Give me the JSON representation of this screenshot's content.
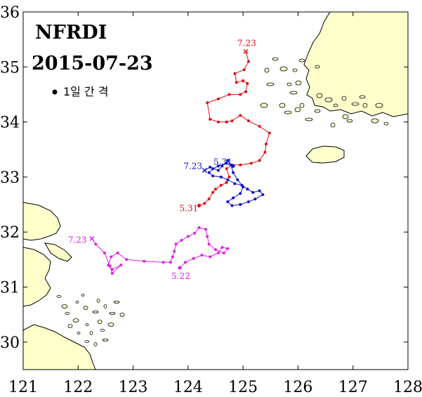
{
  "title": "NFRDI",
  "subtitle": "2015-07-23",
  "legend": {
    "label": "1일 간 격",
    "marker": "filled-dot"
  },
  "axes": {
    "x_ticks": [
      "121",
      "122",
      "123",
      "124",
      "125",
      "126",
      "127",
      "128"
    ],
    "y_ticks": [
      "30",
      "31",
      "32",
      "33",
      "34",
      "35",
      "36"
    ],
    "xlim": [
      121,
      128
    ],
    "ylim": [
      29.5,
      36
    ]
  },
  "colors": {
    "land": "#ffffcc",
    "red": "#dd1111",
    "blue": "#1111cc",
    "magenta": "#dd22dd"
  },
  "chart_data": {
    "type": "scatter",
    "series": [
      {
        "color": "#dd1111",
        "start_label": "5.31",
        "end_label": "7.23",
        "points": [
          [
            124.2,
            32.48
          ],
          [
            124.3,
            32.52
          ],
          [
            124.38,
            32.6
          ],
          [
            124.45,
            32.72
          ],
          [
            124.5,
            32.78
          ],
          [
            124.6,
            32.85
          ],
          [
            124.7,
            32.9
          ],
          [
            124.75,
            33.0
          ],
          [
            124.7,
            33.15
          ],
          [
            124.8,
            33.22
          ],
          [
            124.95,
            33.22
          ],
          [
            125.15,
            33.25
          ],
          [
            125.3,
            33.3
          ],
          [
            125.4,
            33.45
          ],
          [
            125.42,
            33.6
          ],
          [
            125.48,
            33.8
          ],
          [
            125.3,
            33.92
          ],
          [
            125.1,
            34.02
          ],
          [
            124.95,
            34.12
          ],
          [
            124.8,
            34.02
          ],
          [
            124.7,
            34.0
          ],
          [
            124.55,
            34.0
          ],
          [
            124.4,
            34.05
          ],
          [
            124.35,
            34.35
          ],
          [
            124.55,
            34.42
          ],
          [
            124.75,
            34.5
          ],
          [
            124.95,
            34.5
          ],
          [
            125.05,
            34.55
          ],
          [
            125.08,
            34.7
          ],
          [
            125.0,
            34.75
          ],
          [
            124.88,
            34.72
          ],
          [
            124.85,
            34.88
          ],
          [
            125.02,
            34.95
          ],
          [
            125.1,
            35.1
          ],
          [
            125.05,
            35.28
          ]
        ]
      },
      {
        "color": "#1111cc",
        "start_label": "5.31",
        "end_label": "7.23",
        "points": [
          [
            124.82,
            33.2
          ],
          [
            124.7,
            33.25
          ],
          [
            124.55,
            33.2
          ],
          [
            124.45,
            33.15
          ],
          [
            124.38,
            33.08
          ],
          [
            124.45,
            33.02
          ],
          [
            124.6,
            33.0
          ],
          [
            124.72,
            32.95
          ],
          [
            124.85,
            32.88
          ],
          [
            124.98,
            32.85
          ],
          [
            125.08,
            32.78
          ],
          [
            125.18,
            32.72
          ],
          [
            125.3,
            32.75
          ],
          [
            125.36,
            32.68
          ],
          [
            125.22,
            32.6
          ],
          [
            125.1,
            32.55
          ],
          [
            124.95,
            32.5
          ],
          [
            124.8,
            32.48
          ],
          [
            124.72,
            32.55
          ],
          [
            124.82,
            32.62
          ],
          [
            124.95,
            32.7
          ],
          [
            125.0,
            32.82
          ],
          [
            124.9,
            32.95
          ],
          [
            124.82,
            33.08
          ],
          [
            124.78,
            33.22
          ],
          [
            124.72,
            33.3
          ],
          [
            124.62,
            33.2
          ],
          [
            124.55,
            33.12
          ],
          [
            124.4,
            33.18
          ],
          [
            124.3,
            33.12
          ]
        ]
      },
      {
        "color": "#dd22dd",
        "start_label": "5.22",
        "end_label": "7.23",
        "points": [
          [
            123.85,
            31.35
          ],
          [
            123.95,
            31.45
          ],
          [
            124.1,
            31.52
          ],
          [
            124.25,
            31.58
          ],
          [
            124.4,
            31.55
          ],
          [
            124.55,
            31.62
          ],
          [
            124.62,
            31.72
          ],
          [
            124.72,
            31.7
          ],
          [
            124.65,
            31.62
          ],
          [
            124.5,
            31.68
          ],
          [
            124.38,
            31.78
          ],
          [
            124.35,
            31.92
          ],
          [
            124.32,
            32.05
          ],
          [
            124.2,
            32.08
          ],
          [
            124.12,
            31.98
          ],
          [
            124.0,
            31.92
          ],
          [
            123.88,
            31.85
          ],
          [
            123.78,
            31.78
          ],
          [
            123.75,
            31.65
          ],
          [
            123.72,
            31.55
          ],
          [
            123.68,
            31.45
          ],
          [
            123.55,
            31.45
          ],
          [
            123.2,
            31.47
          ],
          [
            122.88,
            31.5
          ],
          [
            122.72,
            31.62
          ],
          [
            122.6,
            31.55
          ],
          [
            122.55,
            31.4
          ],
          [
            122.62,
            31.32
          ],
          [
            122.78,
            31.4
          ],
          [
            122.62,
            31.25
          ],
          [
            122.58,
            31.38
          ],
          [
            122.48,
            31.62
          ],
          [
            122.32,
            31.78
          ],
          [
            122.25,
            31.88
          ]
        ]
      }
    ]
  }
}
